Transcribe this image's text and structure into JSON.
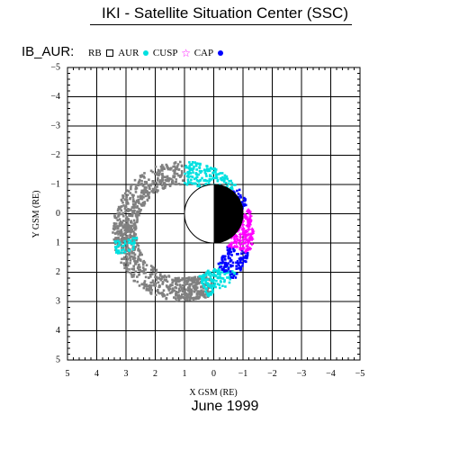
{
  "header": {
    "title": "IKI - Satellite Situation Center (SSC)",
    "dataset": "IB_AUR:"
  },
  "legend": {
    "items": [
      {
        "label": "RB",
        "symbol": "square",
        "color": "#000000"
      },
      {
        "label": "AUR",
        "symbol": "dot",
        "color": "#00e0e0"
      },
      {
        "label": "CUSP",
        "symbol": "star",
        "color": "#ff00ff"
      },
      {
        "label": "CAP",
        "symbol": "dot",
        "color": "#0000ff"
      }
    ]
  },
  "footer": {
    "period": "June    1999"
  },
  "colors": {
    "orbit_gray": "#808080",
    "aur": "#00e0e0",
    "cusp": "#ff00ff",
    "cap": "#0000ff"
  },
  "chart_data": {
    "type": "scatter",
    "xlabel": "X GSM (RE)",
    "ylabel": "Y GSM (RE)",
    "xlim": [
      5,
      -5
    ],
    "ylim": [
      -5,
      5
    ],
    "x_ticks": [
      5,
      4,
      3,
      2,
      1,
      0,
      -1,
      -2,
      -3,
      -4,
      -5
    ],
    "y_ticks": [
      -5,
      -4,
      -3,
      -2,
      -1,
      0,
      1,
      2,
      3,
      4,
      5
    ],
    "x_tick_labels": [
      "5",
      "4",
      "3",
      "2",
      "1",
      "0",
      "−1",
      "−2",
      "−3",
      "−4",
      "−5"
    ],
    "y_tick_labels": [
      "−5",
      "−4",
      "−3",
      "−2",
      "−1",
      "0",
      "1",
      "2",
      "3",
      "4",
      "5"
    ],
    "grid": true,
    "earth": {
      "center": [
        0,
        0
      ],
      "radius": 1,
      "night_side": "x<0"
    },
    "ring": {
      "center_x": 1.05,
      "center_y": 0.6,
      "radius": 2.0,
      "width": 0.8
    },
    "series": [
      {
        "name": "",
        "color": "#808080",
        "arcs": [
          [
            -120,
            90
          ],
          [
            250,
            275
          ],
          [
            -10,
            10
          ]
        ],
        "note": ""
      },
      {
        "name": "AUR",
        "color": "#00e0e0",
        "arcs": [
          [
            92,
            140
          ],
          [
            218,
            250
          ],
          [
            -20,
            -8
          ]
        ]
      },
      {
        "name": "CAP",
        "color": "#0000ff",
        "arcs": [
          [
            140,
            160
          ],
          [
            198,
            225
          ]
        ]
      },
      {
        "name": "CUSP",
        "color": "#ff00ff",
        "arcs": [
          [
            160,
            198
          ]
        ]
      }
    ]
  }
}
